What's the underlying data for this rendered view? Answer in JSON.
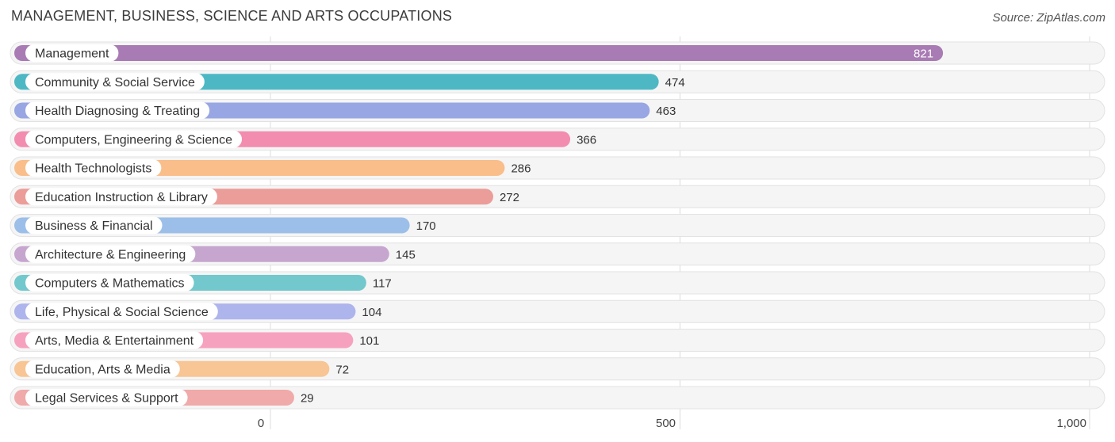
{
  "header": {
    "title": "MANAGEMENT, BUSINESS, SCIENCE AND ARTS OCCUPATIONS",
    "source": "Source: ZipAtlas.com"
  },
  "chart_data": {
    "type": "bar",
    "orientation": "horizontal",
    "title": "MANAGEMENT, BUSINESS, SCIENCE AND ARTS OCCUPATIONS",
    "categories": [
      "Management",
      "Community & Social Service",
      "Health Diagnosing & Treating",
      "Computers, Engineering & Science",
      "Health Technologists",
      "Education Instruction & Library",
      "Business & Financial",
      "Architecture & Engineering",
      "Computers & Mathematics",
      "Life, Physical & Social Science",
      "Arts, Media & Entertainment",
      "Education, Arts & Media",
      "Legal Services & Support"
    ],
    "values": [
      821,
      474,
      463,
      366,
      286,
      272,
      170,
      145,
      117,
      104,
      101,
      72,
      29
    ],
    "value_labels": [
      "821",
      "474",
      "463",
      "366",
      "286",
      "272",
      "170",
      "145",
      "117",
      "104",
      "101",
      "72",
      "29"
    ],
    "colors": [
      "#a87bb4",
      "#4db8c4",
      "#98a6e3",
      "#f38daf",
      "#f9be8a",
      "#eb9d99",
      "#9bbfe8",
      "#c6a6cf",
      "#72c8cc",
      "#aeb4ec",
      "#f6a2be",
      "#f8c594",
      "#efaaa9"
    ],
    "xlim": [
      0,
      1000
    ],
    "xticks": [
      0,
      500,
      1000
    ],
    "xtick_labels": [
      "0",
      "500",
      "1,000"
    ],
    "grid": true
  }
}
